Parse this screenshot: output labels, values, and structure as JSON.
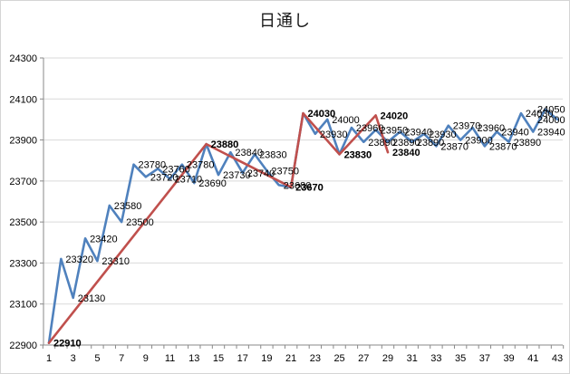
{
  "chart_data": {
    "type": "line",
    "title": "日通し",
    "xlabel": "",
    "ylabel": "",
    "ylim": [
      22900,
      24300
    ],
    "y_step": 200,
    "y_tick_labels": [
      "22900",
      "23100",
      "23300",
      "23500",
      "23700",
      "23900",
      "24100",
      "24300"
    ],
    "x_count": 43,
    "x_tick_labels": [
      "1",
      "3",
      "5",
      "7",
      "9",
      "11",
      "13",
      "15",
      "17",
      "19",
      "21",
      "23",
      "25",
      "27",
      "29",
      "31",
      "33",
      "35",
      "37",
      "39",
      "41",
      "43"
    ],
    "grid": true,
    "legend_position": "none",
    "series": [
      {
        "name": "price-series",
        "color": "#4F81BD",
        "show_labels": true,
        "x": [
          1,
          2,
          3,
          4,
          5,
          6,
          7,
          8,
          9,
          10,
          11,
          12,
          13,
          14,
          15,
          16,
          17,
          18,
          19,
          20,
          21,
          22,
          23,
          24,
          25,
          26,
          27,
          28,
          29,
          30,
          31,
          32,
          33,
          34,
          35,
          36,
          37,
          38,
          39,
          40,
          41,
          42,
          43
        ],
        "values": [
          22910,
          23320,
          23130,
          23420,
          23310,
          23580,
          23500,
          23780,
          23720,
          23760,
          23710,
          23780,
          23690,
          23880,
          23730,
          23840,
          23740,
          23830,
          23750,
          23680,
          23670,
          24030,
          23930,
          24000,
          23830,
          23960,
          23890,
          23950,
          23890,
          23940,
          23890,
          23930,
          23870,
          23970,
          23900,
          23960,
          23870,
          23940,
          23890,
          24030,
          23940,
          24050,
          24000
        ],
        "point_labels": [
          "22910",
          "23320",
          "23130",
          "23420",
          "23310",
          "23580",
          "23500",
          "23780",
          "23720",
          "23760",
          "23710",
          "23780",
          "23690",
          "23880",
          "23730",
          "23840",
          "23740",
          "23830",
          "23750",
          "23680",
          "23670",
          "24030",
          "23930",
          "24000",
          "23830",
          "23960",
          "23890",
          "23950",
          "23890",
          "23940",
          "23890",
          "23930",
          "23870",
          "23970",
          "23900",
          "23960",
          "23870",
          "23940",
          "23890",
          "24030",
          "23940",
          "24050",
          "24000"
        ]
      },
      {
        "name": "trend-series",
        "color": "#C0504D",
        "show_labels": true,
        "bold_labels": true,
        "points": [
          [
            1,
            22910
          ],
          [
            14,
            23880
          ],
          [
            21,
            23670
          ],
          [
            22,
            24030
          ],
          [
            25,
            23830
          ],
          [
            28,
            24020
          ],
          [
            29,
            23840
          ]
        ],
        "point_labels": [
          "22910",
          "23880",
          "23670",
          "24030",
          "23830",
          "24020",
          "23840"
        ]
      }
    ],
    "colors": {
      "gridline": "#D9D9D9",
      "axis_line": "#898989",
      "tick_label": "#000000",
      "data_label": "#000000",
      "background": "#ffffff"
    }
  }
}
